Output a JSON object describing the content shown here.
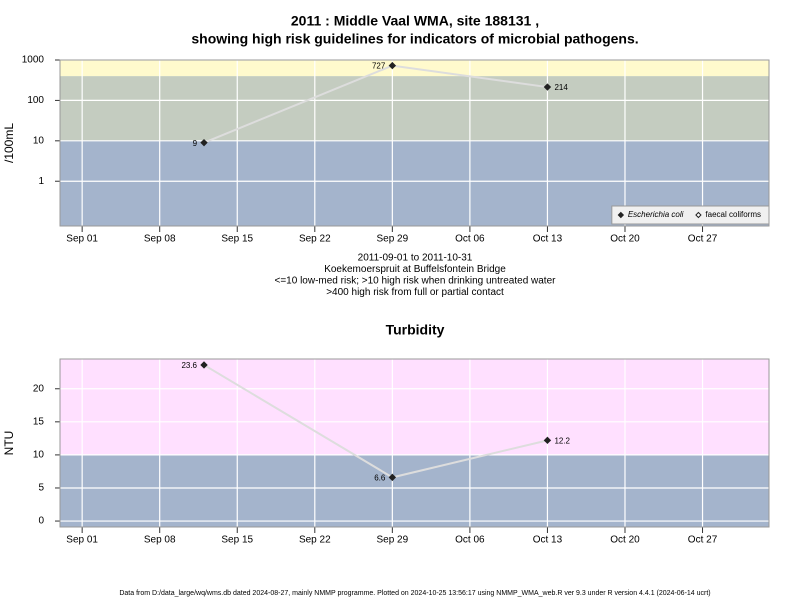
{
  "chart_data": [
    {
      "type": "line",
      "title": [
        "2011 : Middle Vaal WMA, site 188131 ,",
        "showing high risk guidelines for indicators of microbial pathogens."
      ],
      "ylabel": "/100mL",
      "log_y": true,
      "x": [
        "2011-09-12",
        "2011-09-29",
        "2011-10-13"
      ],
      "series": [
        {
          "name": "Escherichia coli",
          "color": "#222222",
          "values": [
            9,
            727,
            214
          ]
        },
        {
          "name": "faecal coliforms",
          "color": "#ffffff",
          "values": [
            null,
            null,
            null
          ]
        }
      ],
      "line_color": "#dddddd",
      "xlim": [
        "2011-08-30",
        "2011-11-02"
      ],
      "xticks": [
        {
          "value": "2011-09-01",
          "label": "Sep 01"
        },
        {
          "value": "2011-09-08",
          "label": "Sep 08"
        },
        {
          "value": "2011-09-15",
          "label": "Sep 15"
        },
        {
          "value": "2011-09-22",
          "label": "Sep 22"
        },
        {
          "value": "2011-09-29",
          "label": "Sep 29"
        },
        {
          "value": "2011-10-06",
          "label": "Oct 06"
        },
        {
          "value": "2011-10-13",
          "label": "Oct 13"
        },
        {
          "value": "2011-10-20",
          "label": "Oct 20"
        },
        {
          "value": "2011-10-27",
          "label": "Oct 27"
        }
      ],
      "ylim": [
        0.078,
        1000
      ],
      "yticks": [
        1,
        10,
        100,
        1000
      ],
      "bands": [
        {
          "to": 10,
          "color": "#a4b4cc"
        },
        {
          "from": 10,
          "to": 400,
          "color": "#c4ccc0"
        },
        {
          "from": 400,
          "color": "#fffacd"
        }
      ],
      "grid": true,
      "legend": "bottom-right",
      "notes": [
        "2011-09-01 to 2011-10-31",
        "Koekemoerspruit at Buffelsfontein Bridge",
        "<=10 low-med risk; >10 high risk when drinking untreated water",
        ">400 high risk from full or partial contact"
      ]
    },
    {
      "type": "line",
      "title": [
        "Turbidity"
      ],
      "ylabel": "NTU",
      "log_y": false,
      "x": [
        "2011-09-12",
        "2011-09-29",
        "2011-10-13"
      ],
      "series": [
        {
          "color": "#222222",
          "values": [
            23.6,
            6.6,
            12.2
          ]
        }
      ],
      "line_color": "#dddddd",
      "xlim": [
        "2011-08-30",
        "2011-11-02"
      ],
      "xticks": [
        {
          "value": "2011-09-01",
          "label": "Sep 01"
        },
        {
          "value": "2011-09-08",
          "label": "Sep 08"
        },
        {
          "value": "2011-09-15",
          "label": "Sep 15"
        },
        {
          "value": "2011-09-22",
          "label": "Sep 22"
        },
        {
          "value": "2011-09-29",
          "label": "Sep 29"
        },
        {
          "value": "2011-10-06",
          "label": "Oct 06"
        },
        {
          "value": "2011-10-13",
          "label": "Oct 13"
        },
        {
          "value": "2011-10-20",
          "label": "Oct 20"
        },
        {
          "value": "2011-10-27",
          "label": "Oct 27"
        }
      ],
      "ylim": [
        -0.9,
        24.5
      ],
      "yticks": [
        0,
        5,
        10,
        15,
        20
      ],
      "bands": [
        {
          "to": 10,
          "color": "#a4b4cc"
        },
        {
          "from": 10,
          "color": "#ffe0ff"
        }
      ],
      "grid": true
    }
  ],
  "footer": "Data from D:/data_large/wq/wms.db dated 2024-08-27, mainly NMMP programme. Plotted on 2024-10-25 13:56:17 using NMMP_WMA_web.R ver 9.3 under R version 4.4.1 (2024-06-14 ucrt)"
}
